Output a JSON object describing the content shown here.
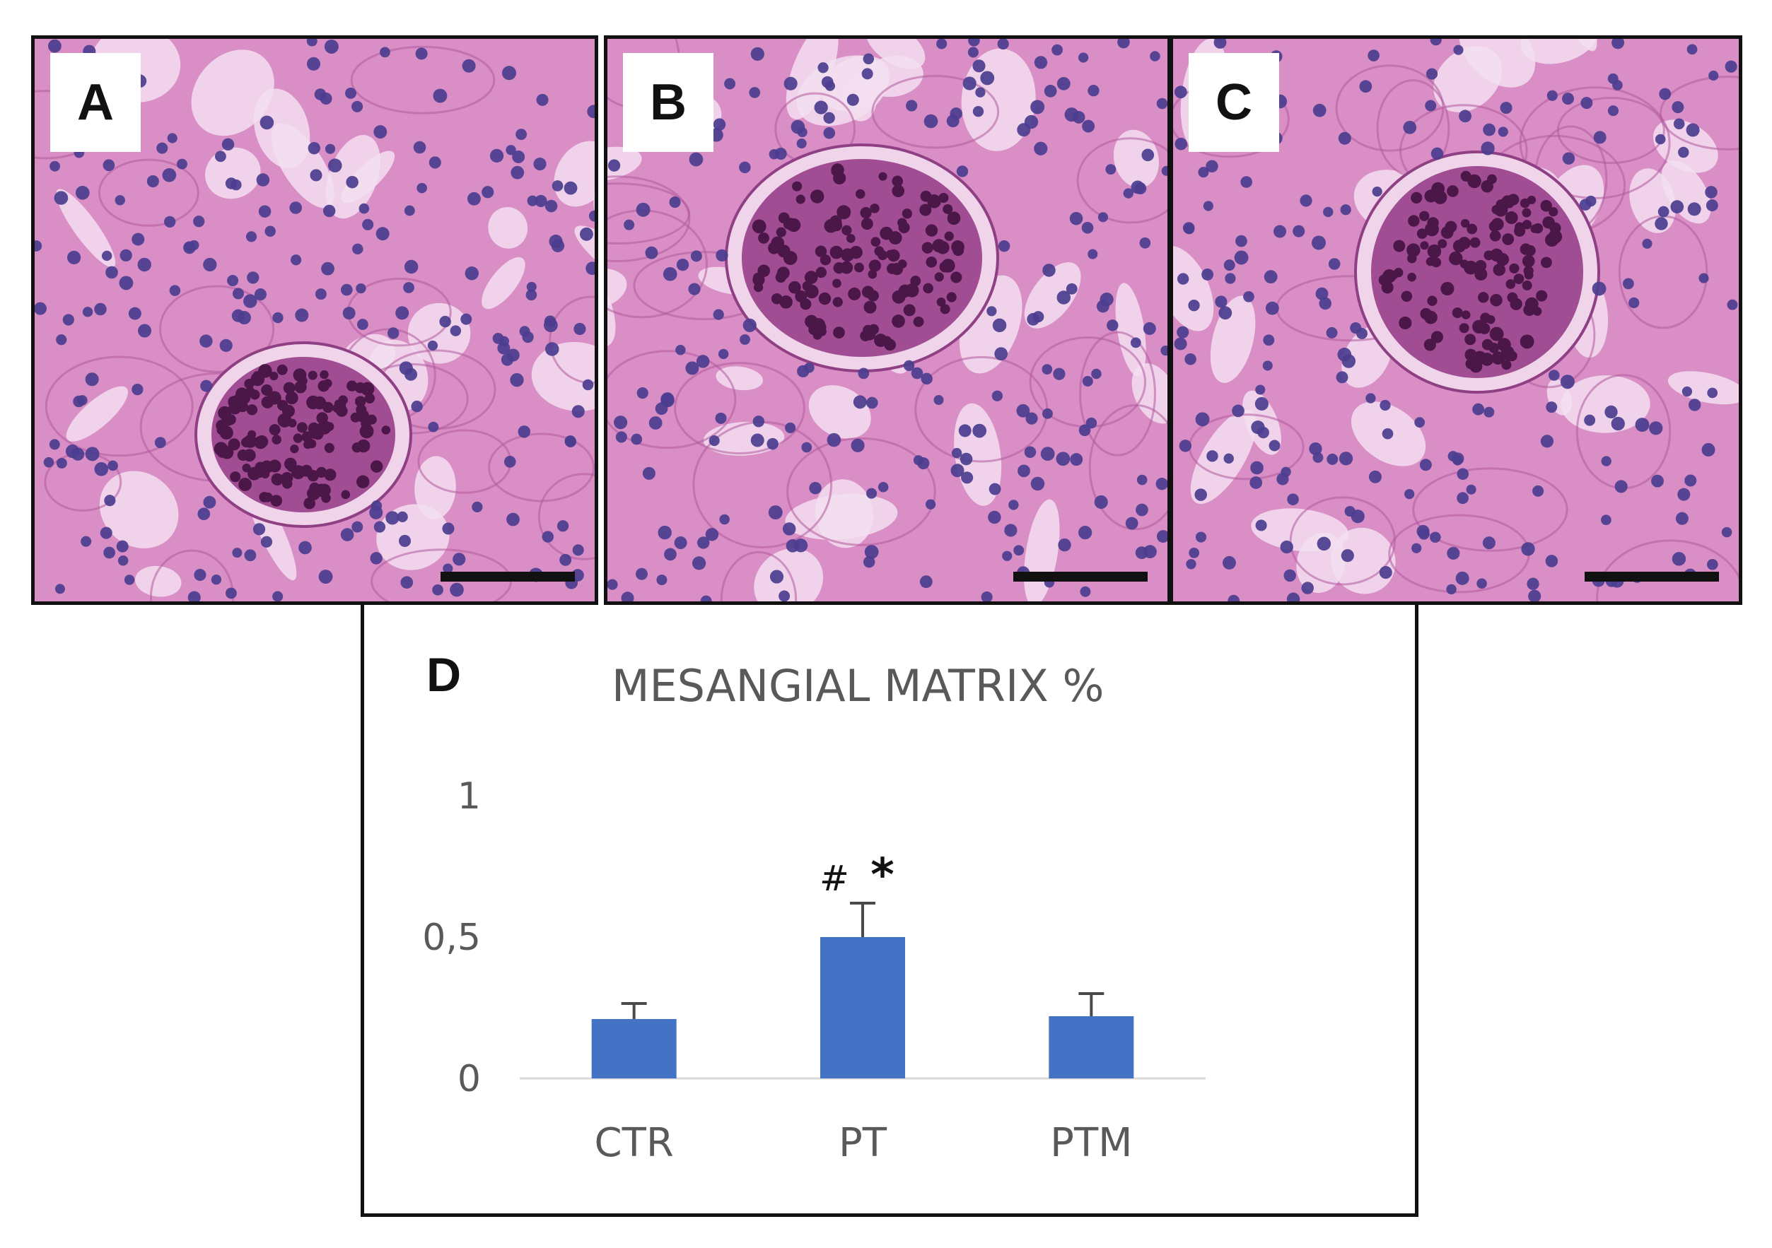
{
  "panels": [
    {
      "letter": "A",
      "description": "kidney-histology"
    },
    {
      "letter": "B",
      "description": "kidney-histology"
    },
    {
      "letter": "C",
      "description": "kidney-histology"
    }
  ],
  "colors": {
    "tissue_bg": "#d98fc6",
    "tissue_light": "#f3dff0",
    "nucleus": "#4b3d8f",
    "glom_nucleus": "#4a1748",
    "bar": "#4472c4",
    "axis_text": "#595959"
  },
  "chart_data": {
    "type": "bar",
    "panel_letter": "D",
    "title": "MESANGIAL MATRIX %",
    "categories": [
      "CTR",
      "PT",
      "PTM"
    ],
    "values": [
      0.21,
      0.5,
      0.22
    ],
    "errors": [
      0.055,
      0.12,
      0.08
    ],
    "annotations": [
      {
        "category": "PT",
        "text": "#"
      },
      {
        "category": "PT",
        "text": "*"
      }
    ],
    "ylim": [
      0,
      1
    ],
    "yticks": [
      {
        "value": 0,
        "label": "0"
      },
      {
        "value": 0.5,
        "label": "0,5"
      },
      {
        "value": 1,
        "label": "1"
      }
    ],
    "grid": false,
    "legend": "none",
    "xlabel": "",
    "ylabel": ""
  }
}
